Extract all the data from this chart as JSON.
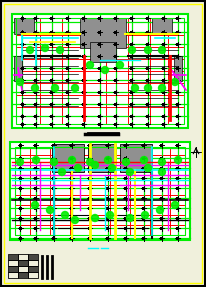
{
  "bg_color": "#f0f0dc",
  "outer_border_color": "#000000",
  "yellow_border_color": "#ffff00",
  "green_color": "#00ee00",
  "red_color": "#ff0000",
  "cyan_color": "#00ffff",
  "magenta_color": "#ff00ff",
  "yellow_color": "#ffff00",
  "orange_color": "#ffa500",
  "gray_color": "#909090",
  "black_color": "#000000",
  "white_color": "#ffffff",
  "fig_width": 2.06,
  "fig_height": 2.87,
  "dpi": 100
}
